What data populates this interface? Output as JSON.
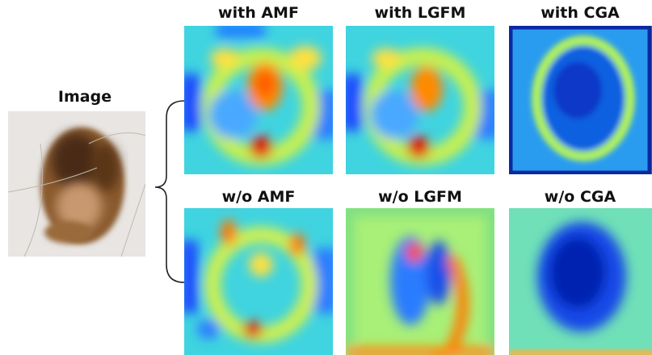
{
  "image_label": "Image",
  "panels": [
    {
      "label": "with AMF"
    },
    {
      "label": "with LGFM"
    },
    {
      "label": "with CGA"
    },
    {
      "label": "w/o AMF"
    },
    {
      "label": "w/o LGFM"
    },
    {
      "label": "w/o CGA"
    }
  ]
}
